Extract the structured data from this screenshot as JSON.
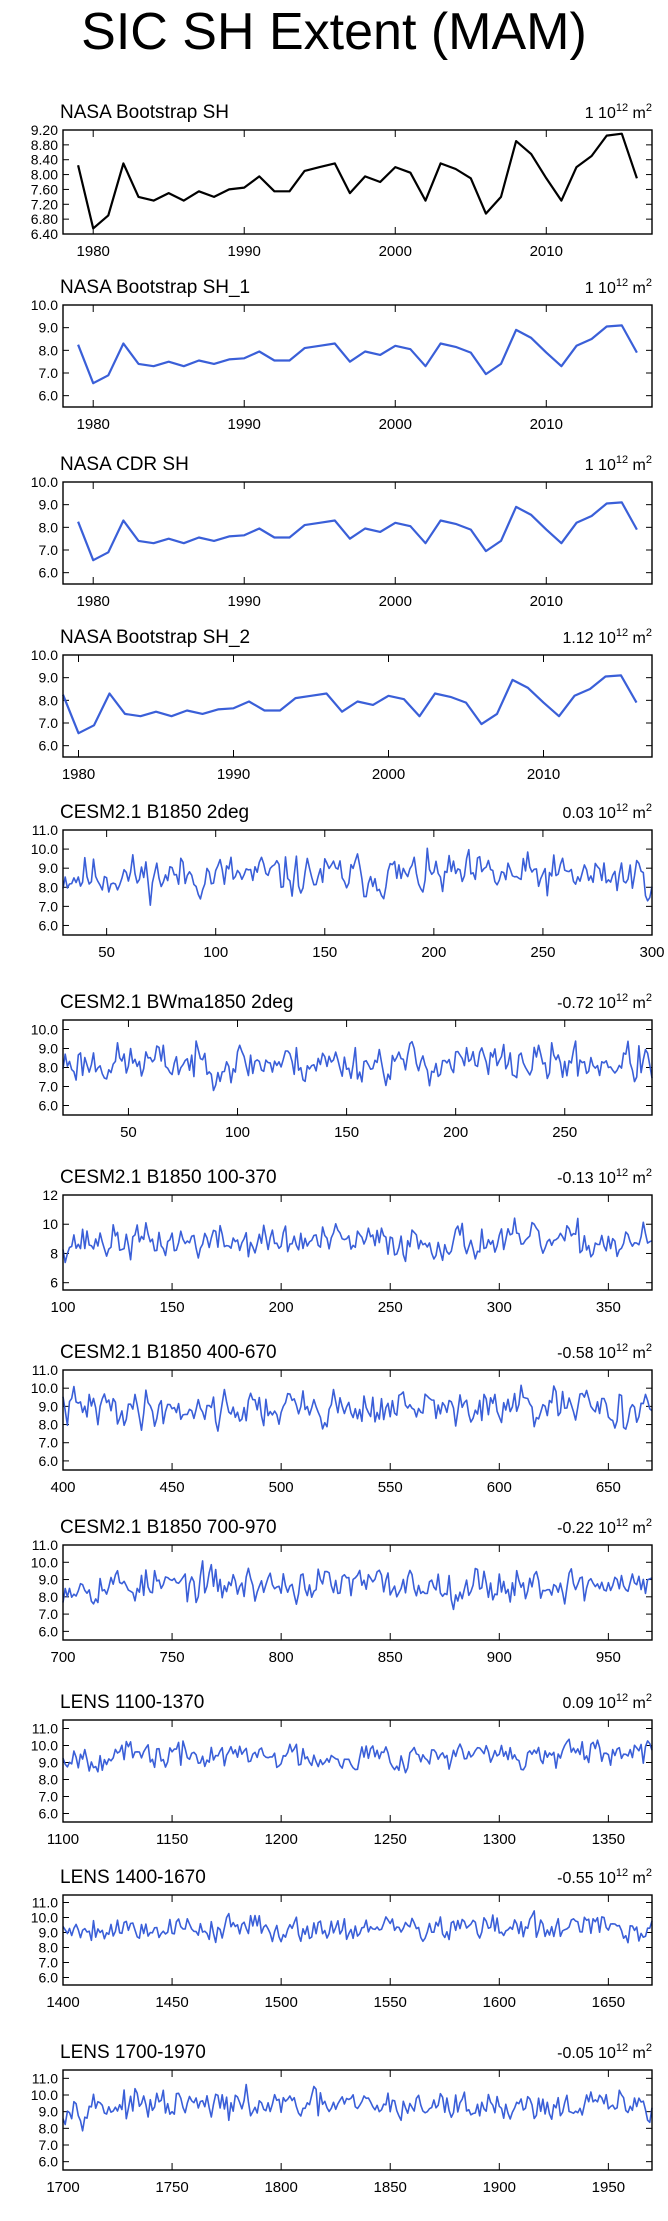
{
  "figure": {
    "title": "SIC SH Extent (MAM)",
    "unit_base": "10",
    "unit_exp": "12",
    "unit_suffix": "m",
    "unit_sup": "2",
    "colors": {
      "obs_black": "#000000",
      "model_blue": "#3a5fd8",
      "axis": "#000000"
    }
  },
  "chart_data": [
    {
      "type": "line",
      "title": "NASA Bootstrap SH",
      "trend_label": "1",
      "color": "#000000",
      "xlim": [
        1978,
        2017
      ],
      "ylim": [
        6.4,
        9.2
      ],
      "xticks": [
        1980,
        1990,
        2000,
        2010
      ],
      "yticks": [
        "6.40",
        "6.80",
        "7.20",
        "7.60",
        "8.00",
        "8.40",
        "8.80",
        "9.20"
      ],
      "x_start": 1979,
      "values": [
        8.25,
        6.55,
        6.9,
        8.3,
        7.4,
        7.3,
        7.5,
        7.3,
        7.55,
        7.4,
        7.6,
        7.65,
        7.95,
        7.55,
        7.55,
        8.1,
        8.2,
        8.3,
        7.5,
        7.95,
        7.8,
        8.2,
        8.05,
        7.3,
        8.3,
        8.15,
        7.9,
        6.95,
        7.4,
        8.9,
        8.55,
        7.9,
        7.3,
        8.2,
        8.5,
        9.05,
        9.1,
        7.9
      ]
    },
    {
      "type": "line",
      "title": "NASA Bootstrap SH_1",
      "trend_label": "1",
      "color": "#3a5fd8",
      "xlim": [
        1978,
        2017
      ],
      "ylim": [
        5.5,
        10.0
      ],
      "xticks": [
        1980,
        1990,
        2000,
        2010
      ],
      "yticks": [
        "6.0",
        "7.0",
        "8.0",
        "9.0",
        "10.0"
      ],
      "x_start": 1979,
      "values": [
        8.25,
        6.55,
        6.9,
        8.3,
        7.4,
        7.3,
        7.5,
        7.3,
        7.55,
        7.4,
        7.6,
        7.65,
        7.95,
        7.55,
        7.55,
        8.1,
        8.2,
        8.3,
        7.5,
        7.95,
        7.8,
        8.2,
        8.05,
        7.3,
        8.3,
        8.15,
        7.9,
        6.95,
        7.4,
        8.9,
        8.55,
        7.9,
        7.3,
        8.2,
        8.5,
        9.05,
        9.1,
        7.9
      ]
    },
    {
      "type": "line",
      "title": "NASA CDR SH",
      "trend_label": "1",
      "color": "#3a5fd8",
      "xlim": [
        1978,
        2017
      ],
      "ylim": [
        5.5,
        10.0
      ],
      "xticks": [
        1980,
        1990,
        2000,
        2010
      ],
      "yticks": [
        "6.0",
        "7.0",
        "8.0",
        "9.0",
        "10.0"
      ],
      "x_start": 1979,
      "values": [
        8.25,
        6.55,
        6.9,
        8.3,
        7.4,
        7.3,
        7.5,
        7.3,
        7.55,
        7.4,
        7.6,
        7.65,
        7.95,
        7.55,
        7.55,
        8.1,
        8.2,
        8.3,
        7.5,
        7.95,
        7.8,
        8.2,
        8.05,
        7.3,
        8.3,
        8.15,
        7.9,
        6.95,
        7.4,
        8.9,
        8.55,
        7.9,
        7.3,
        8.2,
        8.5,
        9.05,
        9.1,
        7.9
      ]
    },
    {
      "type": "line",
      "title": "NASA Bootstrap SH_2",
      "trend_label": "1.12",
      "color": "#3a5fd8",
      "xlim": [
        1979,
        2017
      ],
      "ylim": [
        5.5,
        10.0
      ],
      "xticks": [
        1980,
        1990,
        2000,
        2010
      ],
      "yticks": [
        "6.0",
        "7.0",
        "8.0",
        "9.0",
        "10.0"
      ],
      "x_start": 1979,
      "values": [
        8.25,
        6.55,
        6.9,
        8.3,
        7.4,
        7.3,
        7.5,
        7.3,
        7.55,
        7.4,
        7.6,
        7.65,
        7.95,
        7.55,
        7.55,
        8.1,
        8.2,
        8.3,
        7.5,
        7.95,
        7.8,
        8.2,
        8.05,
        7.3,
        8.3,
        8.15,
        7.9,
        6.95,
        7.4,
        8.9,
        8.55,
        7.9,
        7.3,
        8.2,
        8.5,
        9.05,
        9.1,
        7.9
      ]
    },
    {
      "type": "line",
      "title": "CESM2.1 B1850 2deg",
      "trend_label": "0.03",
      "color": "#3a5fd8",
      "xlim": [
        30,
        300
      ],
      "ylim": [
        5.5,
        11.0
      ],
      "xticks": [
        50,
        100,
        150,
        200,
        250,
        300
      ],
      "yticks": [
        "6.0",
        "7.0",
        "8.0",
        "9.0",
        "10.0",
        "11.0"
      ],
      "x_start": 30,
      "series_seed": 11,
      "series_mean": 8.6,
      "series_amp": 0.75,
      "series_length": 271
    },
    {
      "type": "line",
      "title": "CESM2.1 BWma1850 2deg",
      "trend_label": "-0.72",
      "color": "#3a5fd8",
      "xlim": [
        20,
        290
      ],
      "ylim": [
        5.5,
        10.5
      ],
      "xticks": [
        50,
        100,
        150,
        200,
        250
      ],
      "yticks": [
        "6.0",
        "7.0",
        "8.0",
        "9.0",
        "10.0"
      ],
      "x_start": 20,
      "series_seed": 23,
      "series_mean": 8.25,
      "series_amp": 0.7,
      "series_length": 271
    },
    {
      "type": "line",
      "title": "CESM2.1 B1850 100-370",
      "trend_label": "-0.13",
      "color": "#3a5fd8",
      "xlim": [
        100,
        370
      ],
      "ylim": [
        5.5,
        12.0
      ],
      "xticks": [
        100,
        150,
        200,
        250,
        300,
        350
      ],
      "yticks": [
        "6",
        "8",
        "10",
        "12"
      ],
      "x_start": 100,
      "series_seed": 37,
      "series_mean": 8.8,
      "series_amp": 0.8,
      "series_length": 271
    },
    {
      "type": "line",
      "title": "CESM2.1 B1850 400-670",
      "trend_label": "-0.58",
      "color": "#3a5fd8",
      "xlim": [
        400,
        670
      ],
      "ylim": [
        5.5,
        11.0
      ],
      "xticks": [
        400,
        450,
        500,
        550,
        600,
        650
      ],
      "yticks": [
        "6.0",
        "7.0",
        "8.0",
        "9.0",
        "10.0",
        "11.0"
      ],
      "x_start": 400,
      "series_seed": 41,
      "series_mean": 8.9,
      "series_amp": 0.7,
      "series_length": 271
    },
    {
      "type": "line",
      "title": "CESM2.1 B1850 700-970",
      "trend_label": "-0.22",
      "color": "#3a5fd8",
      "xlim": [
        700,
        970
      ],
      "ylim": [
        5.5,
        11.0
      ],
      "xticks": [
        700,
        750,
        800,
        850,
        900,
        950
      ],
      "yticks": [
        "6.0",
        "7.0",
        "8.0",
        "9.0",
        "10.0",
        "11.0"
      ],
      "x_start": 700,
      "series_seed": 53,
      "series_mean": 8.7,
      "series_amp": 0.7,
      "series_length": 271
    },
    {
      "type": "line",
      "title": "LENS 1100-1370",
      "trend_label": "0.09",
      "color": "#3a5fd8",
      "xlim": [
        1100,
        1370
      ],
      "ylim": [
        5.5,
        11.5
      ],
      "xticks": [
        1100,
        1150,
        1200,
        1250,
        1300,
        1350
      ],
      "yticks": [
        "6.0",
        "7.0",
        "8.0",
        "9.0",
        "10.0",
        "11.0"
      ],
      "x_start": 1100,
      "series_seed": 67,
      "series_mean": 9.4,
      "series_amp": 0.55,
      "series_length": 271
    },
    {
      "type": "line",
      "title": "LENS 1400-1670",
      "trend_label": "-0.55",
      "color": "#3a5fd8",
      "xlim": [
        1400,
        1670
      ],
      "ylim": [
        5.5,
        11.5
      ],
      "xticks": [
        1400,
        1450,
        1500,
        1550,
        1600,
        1650
      ],
      "yticks": [
        "6.0",
        "7.0",
        "8.0",
        "9.0",
        "10.0",
        "11.0"
      ],
      "x_start": 1400,
      "series_seed": 79,
      "series_mean": 9.3,
      "series_amp": 0.6,
      "series_length": 271
    },
    {
      "type": "line",
      "title": "LENS 1700-1970",
      "trend_label": "-0.05",
      "color": "#3a5fd8",
      "xlim": [
        1700,
        1970
      ],
      "ylim": [
        5.5,
        11.5
      ],
      "xticks": [
        1700,
        1750,
        1800,
        1850,
        1900,
        1950
      ],
      "yticks": [
        "6.0",
        "7.0",
        "8.0",
        "9.0",
        "10.0",
        "11.0"
      ],
      "x_start": 1700,
      "series_seed": 97,
      "series_mean": 9.35,
      "series_amp": 0.6,
      "series_length": 271
    }
  ]
}
